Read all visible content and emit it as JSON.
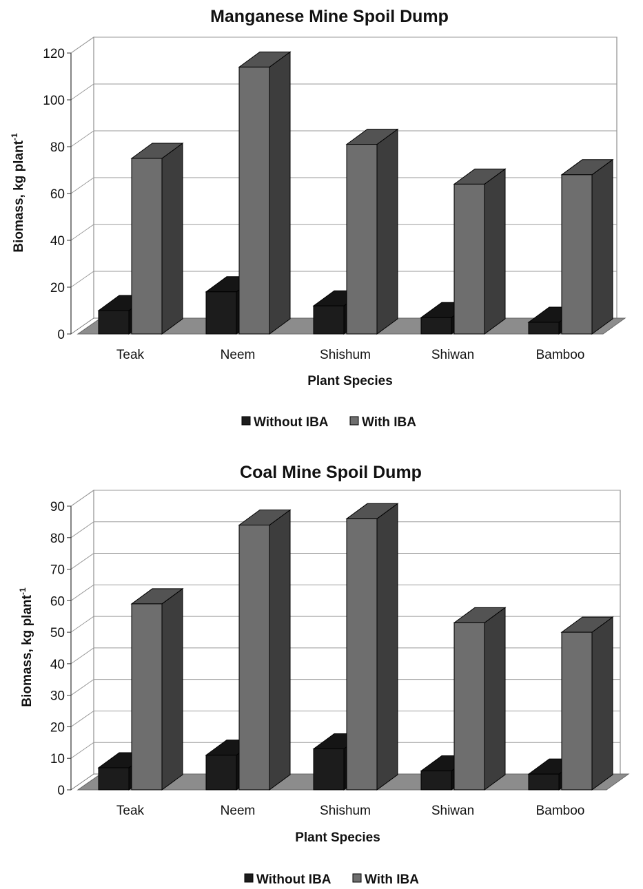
{
  "colors": {
    "without_iba": "#1c1c1c",
    "with_iba": "#6e6e6e",
    "floor": "#8c8c8c",
    "grid": "#9a9a9a"
  },
  "chart_data": [
    {
      "type": "bar",
      "title": "Manganese Mine Spoil Dump",
      "xlabel": "Plant Species",
      "ylabel": "Biomass, kg plant",
      "ylabel_sup": "-1",
      "categories": [
        "Teak",
        "Neem",
        "Shishum",
        "Shiwan",
        "Bamboo"
      ],
      "series": [
        {
          "name": "Without IBA",
          "values": [
            10,
            18,
            12,
            7,
            5
          ]
        },
        {
          "name": "With IBA",
          "values": [
            75,
            114,
            81,
            64,
            68
          ]
        }
      ],
      "ylim": [
        0,
        120
      ],
      "yticks": [
        "0",
        "20",
        "40",
        "60",
        "80",
        "100",
        "120"
      ],
      "grid": true,
      "legend": "bottom"
    },
    {
      "type": "bar",
      "title": "Coal Mine Spoil Dump",
      "xlabel": "Plant Species",
      "ylabel": "Biomass, kg plant",
      "ylabel_sup": "-1",
      "categories": [
        "Teak",
        "Neem",
        "Shishum",
        "Shiwan",
        "Bamboo"
      ],
      "series": [
        {
          "name": "Without IBA",
          "values": [
            7,
            11,
            13,
            6,
            5
          ]
        },
        {
          "name": "With IBA",
          "values": [
            59,
            84,
            86,
            53,
            50
          ]
        }
      ],
      "ylim": [
        0,
        90
      ],
      "yticks": [
        "0",
        "10",
        "20",
        "30",
        "40",
        "50",
        "60",
        "70",
        "80",
        "90"
      ],
      "grid": true,
      "legend": "bottom"
    }
  ]
}
